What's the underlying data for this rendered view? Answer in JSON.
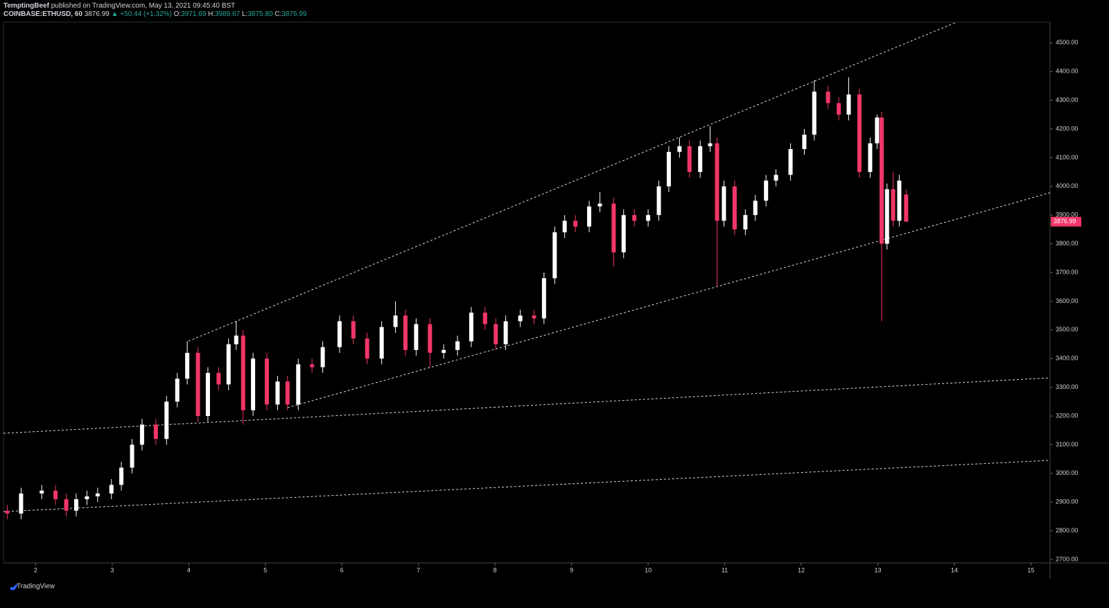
{
  "header": {
    "author": "TemptingBeef",
    "published": "published on TradingView.com, May 13, 2021 09:45:40 BST",
    "symbol": "COINBASE:ETHUSD, 60",
    "price": "3876.99",
    "change": "▲ +50.44 (+1.32%)",
    "o_label": "O:",
    "o": "3971.69",
    "h_label": "H:",
    "h": "3989.67",
    "l_label": "L:",
    "l": "3875.80",
    "c_label": "C:",
    "c": "3876.99"
  },
  "footer": {
    "brand": "TradingView"
  },
  "chart_data": {
    "type": "candlestick",
    "up_color": "#ffffff",
    "down_color": "#f23668",
    "x": [
      1.63,
      1.81,
      2.08,
      2.26,
      2.4,
      2.53,
      2.67,
      2.81,
      2.99,
      3.12,
      3.26,
      3.39,
      3.57,
      3.71,
      3.85,
      3.98,
      4.12,
      4.25,
      4.39,
      4.52,
      4.62,
      4.71,
      4.84,
      5.02,
      5.16,
      5.29,
      5.43,
      5.61,
      5.75,
      5.97,
      6.15,
      6.33,
      6.52,
      6.7,
      6.83,
      6.97,
      7.15,
      7.33,
      7.51,
      7.69,
      7.87,
      8.01,
      8.14,
      8.33,
      8.51,
      8.64,
      8.78,
      8.91,
      9.05,
      9.23,
      9.37,
      9.55,
      9.68,
      9.82,
      10.0,
      10.14,
      10.27,
      10.41,
      10.54,
      10.68,
      10.81,
      10.9,
      10.99,
      11.13,
      11.27,
      11.4,
      11.54,
      11.67,
      11.86,
      12.04,
      12.17,
      12.35,
      12.49,
      12.62,
      12.76,
      12.9,
      12.99,
      13.05,
      13.12,
      13.2,
      13.28,
      13.37
    ],
    "opens": [
      2870,
      2860,
      2930,
      2940,
      2910,
      2870,
      2910,
      2920,
      2930,
      2960,
      3020,
      3100,
      3170,
      3120,
      3250,
      3330,
      3420,
      3200,
      3350,
      3310,
      3450,
      3480,
      3220,
      3400,
      3240,
      3320,
      3240,
      3380,
      3370,
      3440,
      3530,
      3470,
      3400,
      3510,
      3550,
      3430,
      3520,
      3420,
      3430,
      3460,
      3560,
      3520,
      3450,
      3530,
      3550,
      3540,
      3680,
      3840,
      3880,
      3860,
      3930,
      3940,
      3770,
      3900,
      3880,
      3900,
      4000,
      4120,
      4140,
      4050,
      4140,
      4150,
      3880,
      4000,
      3850,
      3900,
      3950,
      4020,
      4040,
      4130,
      4180,
      4330,
      4290,
      4250,
      4320,
      4050,
      4150,
      4240,
      3800,
      3990,
      3880,
      3971.69
    ],
    "highs": [
      2890,
      2950,
      2960,
      2960,
      2930,
      2930,
      2940,
      2950,
      2980,
      3040,
      3120,
      3190,
      3190,
      3270,
      3350,
      3460,
      3440,
      3370,
      3370,
      3470,
      3530,
      3500,
      3420,
      3420,
      3340,
      3340,
      3400,
      3400,
      3460,
      3550,
      3550,
      3490,
      3530,
      3600,
      3570,
      3540,
      3540,
      3450,
      3480,
      3580,
      3580,
      3540,
      3550,
      3570,
      3570,
      3700,
      3860,
      3900,
      3900,
      3950,
      3980,
      3960,
      3920,
      3920,
      3920,
      4020,
      4140,
      4170,
      4160,
      4160,
      4210,
      4170,
      4020,
      4020,
      3920,
      3970,
      4040,
      4060,
      4150,
      4200,
      4370,
      4350,
      4310,
      4380,
      4340,
      4170,
      4250,
      4260,
      4010,
      4050,
      4040,
      3989.67
    ],
    "lows": [
      2840,
      2840,
      2910,
      2890,
      2850,
      2850,
      2890,
      2900,
      2910,
      2940,
      3000,
      3080,
      3100,
      3100,
      3230,
      3310,
      3180,
      3180,
      3290,
      3290,
      3430,
      3170,
      3200,
      3220,
      3220,
      3220,
      3220,
      3350,
      3350,
      3420,
      3450,
      3380,
      3380,
      3490,
      3410,
      3410,
      3370,
      3400,
      3410,
      3440,
      3500,
      3430,
      3430,
      3510,
      3520,
      3520,
      3660,
      3820,
      3840,
      3840,
      3910,
      3720,
      3750,
      3860,
      3860,
      3880,
      3980,
      4100,
      4030,
      4030,
      4120,
      3650,
      3860,
      3830,
      3830,
      3880,
      3930,
      4000,
      4020,
      4110,
      4160,
      4270,
      4230,
      4230,
      4030,
      4030,
      4130,
      3530,
      3780,
      3860,
      3860,
      3875.8
    ],
    "closes": [
      2860,
      2930,
      2940,
      2910,
      2870,
      2910,
      2920,
      2930,
      2960,
      3020,
      3100,
      3170,
      3120,
      3250,
      3330,
      3420,
      3200,
      3350,
      3310,
      3450,
      3480,
      3220,
      3400,
      3240,
      3320,
      3240,
      3380,
      3370,
      3440,
      3530,
      3470,
      3400,
      3510,
      3550,
      3430,
      3520,
      3420,
      3430,
      3460,
      3560,
      3520,
      3450,
      3530,
      3550,
      3540,
      3680,
      3840,
      3880,
      3860,
      3930,
      3940,
      3770,
      3900,
      3880,
      3900,
      4000,
      4120,
      4140,
      4050,
      4140,
      4150,
      3880,
      4000,
      3850,
      3900,
      3950,
      4020,
      4040,
      4130,
      4180,
      4330,
      4290,
      4250,
      4320,
      4050,
      4150,
      4240,
      3800,
      3990,
      3880,
      4020,
      3876.99
    ],
    "xlim": [
      1.58,
      15.25
    ],
    "xticks": [
      2,
      3,
      4,
      5,
      6,
      7,
      8,
      9,
      10,
      11,
      12,
      13,
      14,
      15
    ],
    "ylim": [
      2688,
      4572
    ],
    "yticks": [
      {
        "value": 2700,
        "label": "2700.00"
      },
      {
        "value": 2800,
        "label": "2800.00"
      },
      {
        "value": 2900,
        "label": "2900.00"
      },
      {
        "value": 3000,
        "label": "3000.00"
      },
      {
        "value": 3100,
        "label": "3100.00"
      },
      {
        "value": 3200,
        "label": "3200.00"
      },
      {
        "value": 3300,
        "label": "3300.00"
      },
      {
        "value": 3400,
        "label": "3400.00"
      },
      {
        "value": 3500,
        "label": "3500.00"
      },
      {
        "value": 3600,
        "label": "3600.00"
      },
      {
        "value": 3700,
        "label": "3700.00"
      },
      {
        "value": 3800,
        "label": "3800.00"
      },
      {
        "value": 3900,
        "label": "3900.00"
      },
      {
        "value": 4000,
        "label": "4000.00"
      },
      {
        "value": 4100,
        "label": "4100.00"
      },
      {
        "value": 4200,
        "label": "4200.00"
      },
      {
        "value": 4300,
        "label": "4300.00"
      },
      {
        "value": 4400,
        "label": "4400.00"
      },
      {
        "value": 4500,
        "label": "4500.00"
      }
    ]
  }
}
